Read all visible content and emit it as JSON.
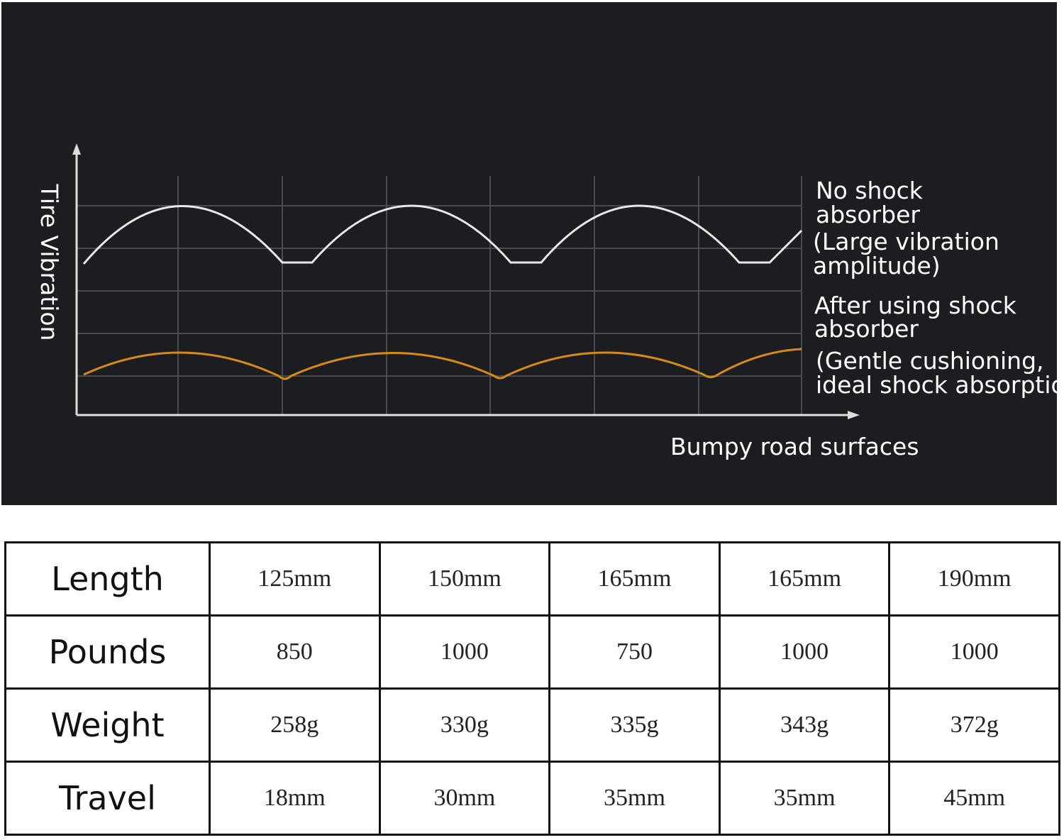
{
  "diagram": {
    "y_axis_label": "Tire Vibration",
    "x_axis_label": "Bumpy road surfaces",
    "legend": [
      {
        "lines": [
          "No shock",
          "absorber",
          "(Large vibration",
          "amplitude)"
        ]
      },
      {
        "lines": [
          "After using shock",
          "absorber",
          "(Gentle cushioning,",
          "ideal shock absorption)"
        ]
      }
    ]
  },
  "table": {
    "rows": [
      [
        "Length",
        "125mm",
        "150mm",
        "165mm",
        "165mm",
        "190mm"
      ],
      [
        "Pounds",
        "850",
        "1000",
        "750",
        "1000",
        "1000"
      ],
      [
        "Weight",
        "258g",
        "330g",
        "335g",
        "343g",
        "372g"
      ],
      [
        "Travel",
        "18mm",
        "30mm",
        "35mm",
        "35mm",
        "45mm"
      ]
    ]
  }
}
